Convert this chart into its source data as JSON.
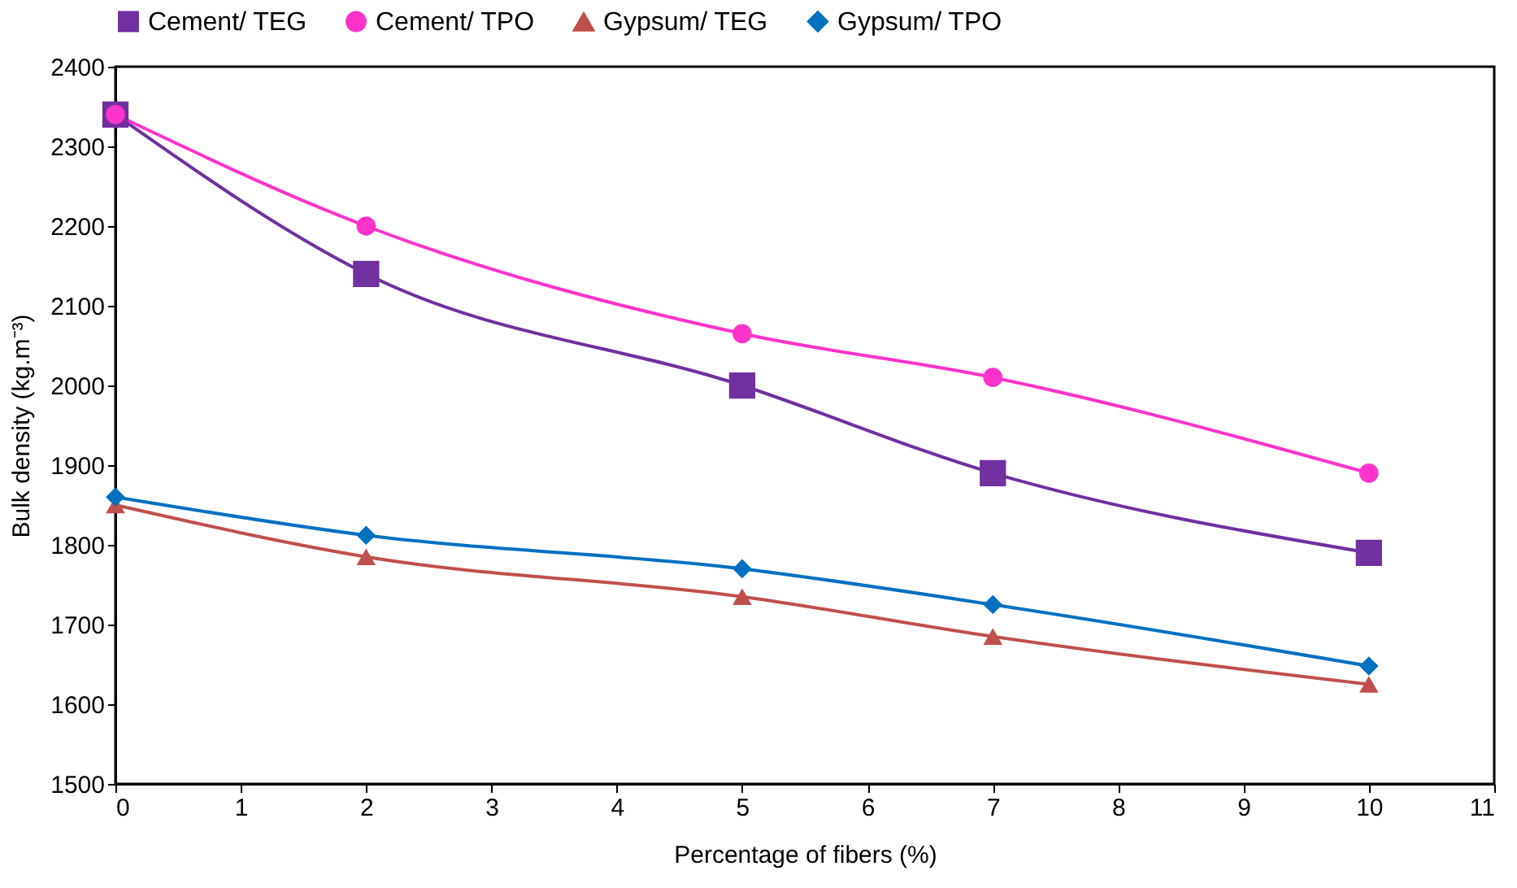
{
  "chart_data": {
    "type": "line",
    "xlabel": "Percentage of fibers (%)",
    "ylabel": "Bulk density (kg.m⁻³)",
    "x": [
      0,
      2,
      5,
      7,
      10
    ],
    "series": [
      {
        "name": "Cement/ TEG",
        "color": "#7030a0",
        "marker": "square",
        "values": [
          2340,
          2140,
          2000,
          1890,
          1790
        ]
      },
      {
        "name": "Cement/ TPO",
        "color": "#ff33cc",
        "marker": "circle",
        "values": [
          2340,
          2200,
          2065,
          2010,
          1890
        ]
      },
      {
        "name": "Gypsum/ TEG",
        "color": "#c0504d",
        "marker": "triangle",
        "values": [
          1850,
          1785,
          1735,
          1685,
          1625
        ]
      },
      {
        "name": "Gypsum/ TPO",
        "color": "#0070c0",
        "marker": "diamond",
        "values": [
          1860,
          1812,
          1770,
          1725,
          1648
        ]
      }
    ],
    "xlim": [
      0,
      11
    ],
    "xticks": [
      0,
      1,
      2,
      3,
      4,
      5,
      6,
      7,
      8,
      9,
      10,
      11
    ],
    "ylim": [
      1500,
      2400
    ],
    "yticks": [
      1500,
      1600,
      1700,
      1800,
      1900,
      2000,
      2100,
      2200,
      2300,
      2400
    ],
    "grid": false,
    "legend": "top",
    "line_style": "solid"
  }
}
